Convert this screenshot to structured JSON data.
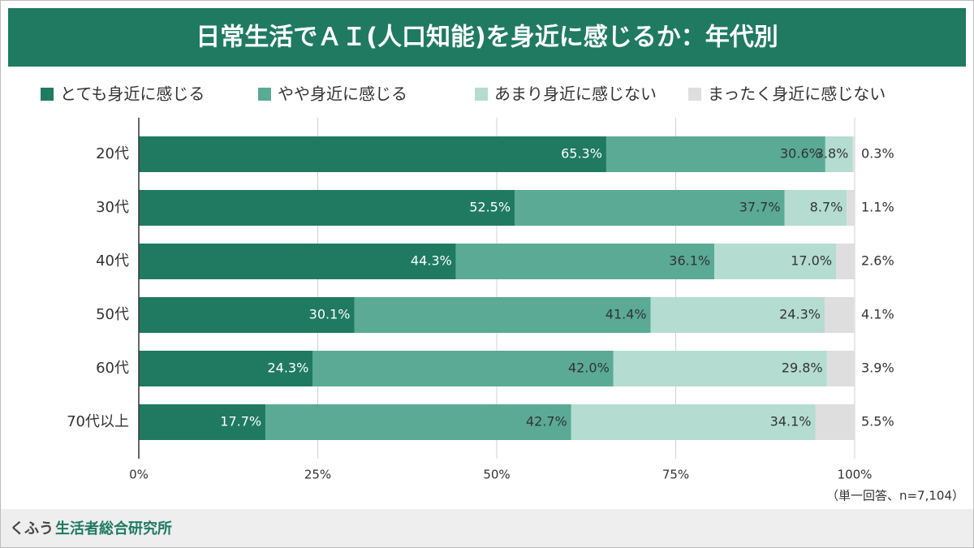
{
  "chart_data": {
    "type": "stacked-barh",
    "title": "日常生活でＡＩ(人口知能)を身近に感じるか：年代別",
    "categories": [
      "20代",
      "30代",
      "40代",
      "50代",
      "60代",
      "70代以上"
    ],
    "series": [
      {
        "name": "とても身近に感じる",
        "color": "#1f7a61",
        "values": [
          65.3,
          52.5,
          44.3,
          30.1,
          24.3,
          17.7
        ],
        "value_labels": [
          "65.3%",
          "52.5%",
          "44.3%",
          "30.1%",
          "24.3%",
          "17.7%"
        ]
      },
      {
        "name": "やや身近に感じる",
        "color": "#5aaa95",
        "values": [
          30.6,
          37.7,
          36.1,
          41.4,
          42.0,
          42.7
        ],
        "value_labels": [
          "30.6%",
          "37.7%",
          "36.1%",
          "41.4%",
          "42.0%",
          "42.7%"
        ]
      },
      {
        "name": "あまり身近に感じない",
        "color": "#b4dcd1",
        "values": [
          3.8,
          8.7,
          17.0,
          24.3,
          29.8,
          34.1
        ],
        "value_labels": [
          "3.8%",
          "8.7%",
          "17.0%",
          "24.3%",
          "29.8%",
          "34.1%"
        ]
      },
      {
        "name": "まったく身近に感じない",
        "color": "#dedede",
        "values": [
          0.3,
          1.1,
          2.6,
          4.1,
          3.9,
          5.5
        ],
        "value_labels": [
          "0.3%",
          "1.1%",
          "2.6%",
          "4.1%",
          "3.9%",
          "5.5%"
        ]
      }
    ],
    "xlim": [
      0,
      100
    ],
    "xticks": [
      {
        "value": 0,
        "label": "0%"
      },
      {
        "value": 25,
        "label": "25%"
      },
      {
        "value": 50,
        "label": "50%"
      },
      {
        "value": 75,
        "label": "75%"
      },
      {
        "value": 100,
        "label": "100%"
      }
    ],
    "grid": true,
    "note": "（単一回答、n=7,104）",
    "source_brand": "くふう",
    "source_name": "生活者総合研究所"
  }
}
